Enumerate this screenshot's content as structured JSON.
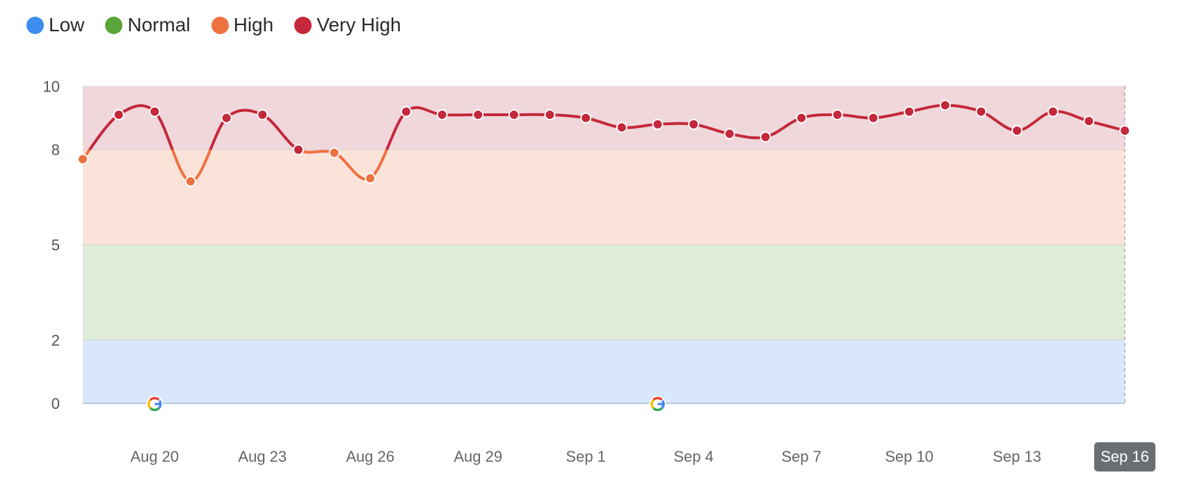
{
  "legend": [
    {
      "label": "Low",
      "color": "#3f8cf0"
    },
    {
      "label": "Normal",
      "color": "#5aa43a"
    },
    {
      "label": "High",
      "color": "#ee7140"
    },
    {
      "label": "Very High",
      "color": "#c4283a"
    }
  ],
  "chart_data": {
    "type": "line",
    "title": "",
    "xlabel": "",
    "ylabel": "",
    "ylim": [
      0,
      10
    ],
    "y_ticks": [
      0,
      2,
      5,
      8,
      10
    ],
    "grid": "horizontal",
    "legend_position": "top-left",
    "bands": [
      {
        "name": "Low",
        "from": 0,
        "to": 2,
        "color": "#d9e7fc"
      },
      {
        "name": "Normal",
        "from": 2,
        "to": 5,
        "color": "#dfedd8"
      },
      {
        "name": "High",
        "from": 5,
        "to": 8,
        "color": "#fbe3da"
      },
      {
        "name": "Very High",
        "from": 8,
        "to": 10,
        "color": "#f0d7dc"
      }
    ],
    "x": [
      "Aug 18",
      "Aug 19",
      "Aug 20",
      "Aug 21",
      "Aug 22",
      "Aug 23",
      "Aug 24",
      "Aug 25",
      "Aug 26",
      "Aug 27",
      "Aug 28",
      "Aug 29",
      "Aug 30",
      "Aug 31",
      "Sep 1",
      "Sep 2",
      "Sep 3",
      "Sep 4",
      "Sep 5",
      "Sep 6",
      "Sep 7",
      "Sep 8",
      "Sep 9",
      "Sep 10",
      "Sep 11",
      "Sep 12",
      "Sep 13",
      "Sep 14",
      "Sep 15",
      "Sep 16"
    ],
    "x_tick_labels": [
      "Aug 20",
      "Aug 23",
      "Aug 26",
      "Aug 29",
      "Sep 1",
      "Sep 4",
      "Sep 7",
      "Sep 10",
      "Sep 13"
    ],
    "highlighted_x": "Sep 16",
    "series": [
      {
        "values": [
          7.7,
          9.1,
          9.2,
          7.0,
          9.0,
          9.1,
          8.0,
          7.9,
          7.1,
          9.2,
          9.1,
          9.1,
          9.1,
          9.1,
          9.0,
          8.7,
          8.8,
          8.8,
          8.5,
          8.4,
          9.0,
          9.1,
          9.0,
          9.2,
          9.4,
          9.2,
          8.6,
          9.2,
          8.9,
          8.6
        ]
      }
    ],
    "google_update_markers": [
      "Aug 20",
      "Sep 3"
    ],
    "line_colors": {
      "high": "#ee7140",
      "very_high": "#c4283a"
    }
  }
}
